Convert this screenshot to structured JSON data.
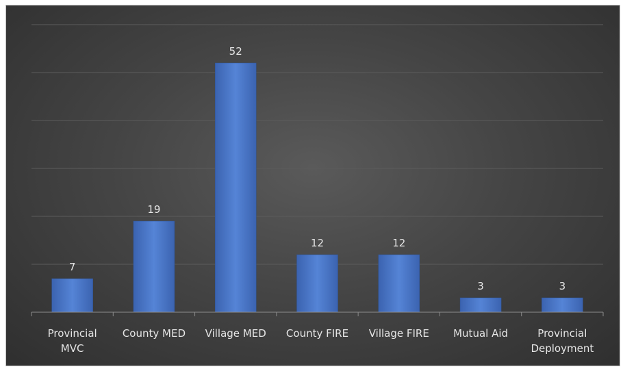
{
  "chart_data": {
    "type": "bar",
    "title": "",
    "xlabel": "",
    "ylabel": "",
    "categories": [
      [
        "Provincial",
        "MVC"
      ],
      [
        "County MED"
      ],
      [
        "Village MED"
      ],
      [
        "County FIRE"
      ],
      [
        "Village FIRE"
      ],
      [
        "Mutual Aid"
      ],
      [
        "Provincial",
        "Deployment"
      ]
    ],
    "values": [
      7,
      19,
      52,
      12,
      12,
      3,
      3
    ],
    "data_labels": [
      "7",
      "19",
      "52",
      "12",
      "12",
      "3",
      "3"
    ],
    "ylim": [
      0,
      60
    ],
    "grid": true,
    "legend": "none",
    "bar_color": "#4472c4",
    "background_color": "#3f3f3f"
  }
}
